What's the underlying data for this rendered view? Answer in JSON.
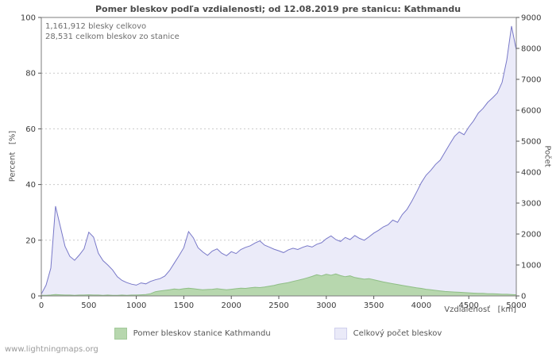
{
  "title": "Pomer bleskov podľa vzdialenosti; od 12.08.2019 pre stanicu: Kathmandu",
  "annotations": {
    "line1": "1,161,912 blesky celkovo",
    "line2": "28,531 celkom bleskov zo stanice"
  },
  "watermark": "www.lightningmaps.org",
  "axes": {
    "left_label": "Percent   [%]",
    "right_label": "Počet",
    "x_label": "Vzdialenosť   [km]"
  },
  "legend": [
    {
      "label": "Pomer bleskov stanice Kathmandu",
      "color": "#b7d7ae",
      "border": "#a3c99a"
    },
    {
      "label": "Celkový počet bleskov",
      "color": "#eaeaf8",
      "border": "#cfcfec"
    }
  ],
  "colors": {
    "grid": "#c9c9c9",
    "plot_border": "#7e7e7e",
    "tick": "#555555",
    "count_stroke": "#7878c8",
    "count_fill": "#ebebf9",
    "percent_stroke": "#8fbe86",
    "percent_fill": "#b7d7ae"
  },
  "chart_data": {
    "type": "area",
    "title": "Pomer bleskov podľa vzdialenosti; od 12.08.2019 pre stanicu: Kathmandu",
    "xlabel": "Vzdialenosť [km]",
    "ylabel_left": "Percent [%]",
    "ylabel_right": "Počet",
    "xlim": [
      0,
      5000
    ],
    "left_ylim": [
      0,
      100
    ],
    "right_ylim": [
      0,
      9000
    ],
    "x_ticks": [
      0,
      500,
      1000,
      1500,
      2000,
      2500,
      3000,
      3500,
      4000,
      4500,
      5000
    ],
    "left_ticks": [
      0,
      20,
      40,
      60,
      80,
      100
    ],
    "right_ticks": [
      0,
      1000,
      2000,
      3000,
      4000,
      5000,
      6000,
      7000,
      8000,
      9000
    ],
    "grid": "horizontal dotted at left-axis ticks",
    "legend_position": "bottom",
    "x": [
      0,
      50,
      100,
      150,
      200,
      250,
      300,
      350,
      400,
      450,
      500,
      550,
      600,
      650,
      700,
      750,
      800,
      850,
      900,
      950,
      1000,
      1050,
      1100,
      1150,
      1200,
      1250,
      1300,
      1350,
      1400,
      1450,
      1500,
      1550,
      1600,
      1650,
      1700,
      1750,
      1800,
      1850,
      1900,
      1950,
      2000,
      2050,
      2100,
      2150,
      2200,
      2250,
      2300,
      2350,
      2400,
      2450,
      2500,
      2550,
      2600,
      2650,
      2700,
      2750,
      2800,
      2850,
      2900,
      2950,
      3000,
      3050,
      3100,
      3150,
      3200,
      3250,
      3300,
      3350,
      3400,
      3450,
      3500,
      3550,
      3600,
      3650,
      3700,
      3750,
      3800,
      3850,
      3900,
      3950,
      4000,
      4050,
      4100,
      4150,
      4200,
      4250,
      4300,
      4350,
      4400,
      4450,
      4500,
      4550,
      4600,
      4650,
      4700,
      4750,
      4800,
      4850,
      4900,
      4950,
      5000
    ],
    "series": [
      {
        "name": "Pomer bleskov stanice Kathmandu",
        "axis": "left",
        "unit": "%",
        "fill": "#b7d7ae",
        "stroke": "#8fbe86",
        "values": [
          0.2,
          0.2,
          0.3,
          0.5,
          0.4,
          0.3,
          0.3,
          0.2,
          0.3,
          0.3,
          0.4,
          0.3,
          0.3,
          0.2,
          0.3,
          0.2,
          0.2,
          0.3,
          0.2,
          0.3,
          0.3,
          0.4,
          0.5,
          0.8,
          1.5,
          1.8,
          2.0,
          2.2,
          2.5,
          2.3,
          2.6,
          2.8,
          2.6,
          2.4,
          2.2,
          2.3,
          2.4,
          2.6,
          2.4,
          2.2,
          2.4,
          2.6,
          2.8,
          2.7,
          2.9,
          3.1,
          3.0,
          3.2,
          3.5,
          3.8,
          4.2,
          4.5,
          4.8,
          5.2,
          5.6,
          6.0,
          6.5,
          7.0,
          7.6,
          7.2,
          7.8,
          7.4,
          7.9,
          7.3,
          6.9,
          7.2,
          6.6,
          6.3,
          6.0,
          6.2,
          5.8,
          5.4,
          5.0,
          4.7,
          4.4,
          4.1,
          3.8,
          3.5,
          3.2,
          2.9,
          2.7,
          2.4,
          2.2,
          2.0,
          1.8,
          1.6,
          1.5,
          1.4,
          1.3,
          1.2,
          1.1,
          1.0,
          0.9,
          0.9,
          0.8,
          0.8,
          0.7,
          0.6,
          0.6,
          0.5,
          0.4
        ]
      },
      {
        "name": "Celkový počet bleskov",
        "axis": "right",
        "unit": "count",
        "fill": "#ebebf9",
        "stroke": "#7878c8",
        "values": [
          60,
          350,
          900,
          2900,
          2250,
          1600,
          1280,
          1150,
          1320,
          1520,
          2060,
          1900,
          1380,
          1140,
          1000,
          840,
          620,
          500,
          430,
          380,
          350,
          420,
          390,
          470,
          520,
          560,
          640,
          820,
          1060,
          1300,
          1560,
          2080,
          1880,
          1560,
          1420,
          1310,
          1450,
          1520,
          1380,
          1300,
          1430,
          1370,
          1500,
          1570,
          1620,
          1710,
          1780,
          1640,
          1580,
          1510,
          1460,
          1400,
          1490,
          1540,
          1500,
          1570,
          1620,
          1580,
          1670,
          1720,
          1850,
          1940,
          1820,
          1760,
          1890,
          1820,
          1950,
          1860,
          1800,
          1910,
          2030,
          2120,
          2230,
          2300,
          2450,
          2380,
          2630,
          2800,
          3060,
          3350,
          3660,
          3900,
          4060,
          4250,
          4390,
          4650,
          4910,
          5160,
          5300,
          5210,
          5460,
          5660,
          5910,
          6060,
          6260,
          6400,
          6560,
          6900,
          7620,
          8720,
          7950
        ]
      }
    ]
  }
}
